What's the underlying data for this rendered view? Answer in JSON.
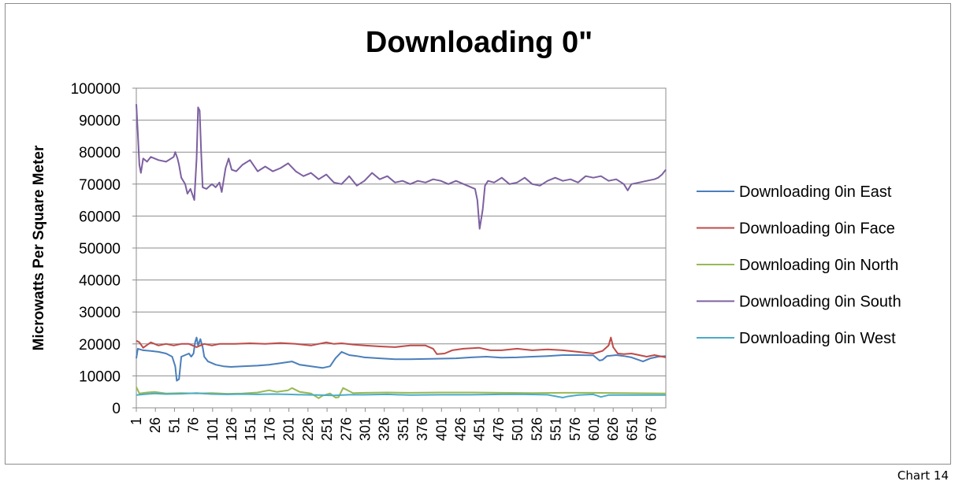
{
  "caption": "Chart 14",
  "chart_data": {
    "type": "line",
    "title": "Downloading 0\"",
    "xlabel": "",
    "ylabel": "Microwatts Per Square Meter",
    "ylim": [
      0,
      100000
    ],
    "yticks": [
      "0",
      "10000",
      "20000",
      "30000",
      "40000",
      "50000",
      "60000",
      "70000",
      "80000",
      "90000",
      "100000"
    ],
    "xlim": [
      1,
      695
    ],
    "xticks": [
      "1",
      "26",
      "51",
      "76",
      "101",
      "126",
      "151",
      "176",
      "201",
      "226",
      "251",
      "276",
      "301",
      "326",
      "351",
      "376",
      "401",
      "426",
      "451",
      "476",
      "501",
      "526",
      "551",
      "576",
      "601",
      "626",
      "651",
      "676"
    ],
    "grid": "horizontal",
    "legend_position": "right",
    "series": [
      {
        "name": "Downloading 0in East",
        "color": "#4a7ebb",
        "points": [
          [
            1,
            15500
          ],
          [
            3,
            18500
          ],
          [
            10,
            18000
          ],
          [
            20,
            17800
          ],
          [
            30,
            17500
          ],
          [
            40,
            17000
          ],
          [
            48,
            16000
          ],
          [
            52,
            13000
          ],
          [
            54,
            8500
          ],
          [
            57,
            9000
          ],
          [
            60,
            16000
          ],
          [
            65,
            16500
          ],
          [
            70,
            17000
          ],
          [
            73,
            16000
          ],
          [
            76,
            17000
          ],
          [
            78,
            20500
          ],
          [
            80,
            22000
          ],
          [
            82,
            19500
          ],
          [
            85,
            21500
          ],
          [
            88,
            19000
          ],
          [
            90,
            16000
          ],
          [
            95,
            14500
          ],
          [
            105,
            13500
          ],
          [
            115,
            13000
          ],
          [
            125,
            12800
          ],
          [
            140,
            13000
          ],
          [
            160,
            13200
          ],
          [
            175,
            13500
          ],
          [
            190,
            14000
          ],
          [
            205,
            14500
          ],
          [
            215,
            13500
          ],
          [
            230,
            13000
          ],
          [
            245,
            12500
          ],
          [
            255,
            13000
          ],
          [
            262,
            15500
          ],
          [
            270,
            17500
          ],
          [
            280,
            16500
          ],
          [
            290,
            16200
          ],
          [
            300,
            15800
          ],
          [
            320,
            15500
          ],
          [
            340,
            15200
          ],
          [
            360,
            15200
          ],
          [
            380,
            15300
          ],
          [
            400,
            15400
          ],
          [
            420,
            15500
          ],
          [
            440,
            15800
          ],
          [
            460,
            16000
          ],
          [
            480,
            15700
          ],
          [
            500,
            15800
          ],
          [
            520,
            16000
          ],
          [
            540,
            16200
          ],
          [
            560,
            16500
          ],
          [
            580,
            16500
          ],
          [
            600,
            16400
          ],
          [
            608,
            14800
          ],
          [
            612,
            15000
          ],
          [
            618,
            16200
          ],
          [
            630,
            16500
          ],
          [
            640,
            16200
          ],
          [
            650,
            15800
          ],
          [
            665,
            14500
          ],
          [
            675,
            15500
          ],
          [
            685,
            16000
          ],
          [
            695,
            16200
          ]
        ]
      },
      {
        "name": "Downloading 0in Face",
        "color": "#be4b48",
        "points": [
          [
            1,
            21000
          ],
          [
            5,
            20500
          ],
          [
            10,
            18800
          ],
          [
            20,
            20500
          ],
          [
            30,
            19500
          ],
          [
            40,
            20000
          ],
          [
            50,
            19500
          ],
          [
            60,
            20000
          ],
          [
            70,
            20000
          ],
          [
            80,
            19000
          ],
          [
            90,
            20000
          ],
          [
            100,
            19500
          ],
          [
            110,
            20000
          ],
          [
            130,
            20000
          ],
          [
            150,
            20200
          ],
          [
            170,
            20000
          ],
          [
            190,
            20300
          ],
          [
            210,
            20000
          ],
          [
            230,
            19500
          ],
          [
            250,
            20500
          ],
          [
            260,
            20000
          ],
          [
            270,
            20200
          ],
          [
            285,
            19800
          ],
          [
            300,
            19500
          ],
          [
            320,
            19200
          ],
          [
            340,
            19000
          ],
          [
            360,
            19500
          ],
          [
            380,
            19500
          ],
          [
            390,
            18500
          ],
          [
            395,
            16800
          ],
          [
            405,
            17000
          ],
          [
            415,
            18000
          ],
          [
            430,
            18500
          ],
          [
            450,
            18800
          ],
          [
            465,
            18000
          ],
          [
            480,
            18000
          ],
          [
            500,
            18500
          ],
          [
            520,
            18000
          ],
          [
            540,
            18300
          ],
          [
            560,
            18000
          ],
          [
            580,
            17500
          ],
          [
            600,
            17000
          ],
          [
            612,
            17800
          ],
          [
            620,
            19500
          ],
          [
            623,
            22000
          ],
          [
            626,
            19000
          ],
          [
            632,
            17000
          ],
          [
            640,
            16800
          ],
          [
            650,
            17000
          ],
          [
            660,
            16500
          ],
          [
            670,
            16000
          ],
          [
            680,
            16500
          ],
          [
            695,
            15800
          ]
        ]
      },
      {
        "name": "Downloading 0in North",
        "color": "#98b954",
        "points": [
          [
            1,
            6500
          ],
          [
            5,
            4500
          ],
          [
            15,
            4800
          ],
          [
            25,
            5000
          ],
          [
            40,
            4500
          ],
          [
            60,
            4600
          ],
          [
            80,
            4500
          ],
          [
            100,
            4600
          ],
          [
            120,
            4400
          ],
          [
            140,
            4500
          ],
          [
            160,
            4800
          ],
          [
            175,
            5500
          ],
          [
            185,
            5000
          ],
          [
            200,
            5500
          ],
          [
            205,
            6200
          ],
          [
            215,
            5000
          ],
          [
            230,
            4500
          ],
          [
            240,
            3000
          ],
          [
            245,
            3800
          ],
          [
            255,
            4500
          ],
          [
            262,
            3200
          ],
          [
            266,
            3300
          ],
          [
            272,
            6200
          ],
          [
            278,
            5500
          ],
          [
            285,
            4600
          ],
          [
            300,
            4700
          ],
          [
            330,
            4800
          ],
          [
            360,
            4700
          ],
          [
            400,
            4800
          ],
          [
            440,
            4800
          ],
          [
            480,
            4700
          ],
          [
            520,
            4600
          ],
          [
            560,
            4700
          ],
          [
            600,
            4700
          ],
          [
            640,
            4600
          ],
          [
            695,
            4500
          ]
        ]
      },
      {
        "name": "Downloading 0in South",
        "color": "#7d60a0",
        "points": [
          [
            1,
            95000
          ],
          [
            3,
            86000
          ],
          [
            5,
            76000
          ],
          [
            7,
            73500
          ],
          [
            10,
            78000
          ],
          [
            15,
            77000
          ],
          [
            20,
            78500
          ],
          [
            30,
            77500
          ],
          [
            40,
            77000
          ],
          [
            50,
            78500
          ],
          [
            52,
            80000
          ],
          [
            55,
            78000
          ],
          [
            57,
            76000
          ],
          [
            60,
            72000
          ],
          [
            65,
            70000
          ],
          [
            68,
            67000
          ],
          [
            72,
            68500
          ],
          [
            77,
            65000
          ],
          [
            80,
            78000
          ],
          [
            82,
            94000
          ],
          [
            84,
            93000
          ],
          [
            86,
            80000
          ],
          [
            88,
            69000
          ],
          [
            93,
            68500
          ],
          [
            100,
            70000
          ],
          [
            105,
            69000
          ],
          [
            110,
            70500
          ],
          [
            113,
            67500
          ],
          [
            118,
            75000
          ],
          [
            122,
            78000
          ],
          [
            126,
            74500
          ],
          [
            132,
            74000
          ],
          [
            140,
            76000
          ],
          [
            150,
            77500
          ],
          [
            160,
            74000
          ],
          [
            170,
            75500
          ],
          [
            180,
            74000
          ],
          [
            190,
            75000
          ],
          [
            200,
            76500
          ],
          [
            210,
            74000
          ],
          [
            220,
            72500
          ],
          [
            230,
            73500
          ],
          [
            240,
            71500
          ],
          [
            250,
            73000
          ],
          [
            260,
            70500
          ],
          [
            270,
            70000
          ],
          [
            280,
            72500
          ],
          [
            290,
            69500
          ],
          [
            300,
            71000
          ],
          [
            310,
            73500
          ],
          [
            320,
            71500
          ],
          [
            330,
            72500
          ],
          [
            340,
            70500
          ],
          [
            350,
            71000
          ],
          [
            360,
            70000
          ],
          [
            370,
            71000
          ],
          [
            380,
            70500
          ],
          [
            390,
            71500
          ],
          [
            400,
            71000
          ],
          [
            410,
            70000
          ],
          [
            420,
            71000
          ],
          [
            430,
            70000
          ],
          [
            440,
            69000
          ],
          [
            445,
            68500
          ],
          [
            448,
            65000
          ],
          [
            451,
            56000
          ],
          [
            455,
            62000
          ],
          [
            458,
            69500
          ],
          [
            462,
            71000
          ],
          [
            470,
            70500
          ],
          [
            480,
            72000
          ],
          [
            490,
            70000
          ],
          [
            500,
            70500
          ],
          [
            510,
            72000
          ],
          [
            520,
            70000
          ],
          [
            530,
            69500
          ],
          [
            540,
            71000
          ],
          [
            550,
            72000
          ],
          [
            560,
            71000
          ],
          [
            570,
            71500
          ],
          [
            580,
            70500
          ],
          [
            590,
            72500
          ],
          [
            600,
            72000
          ],
          [
            610,
            72500
          ],
          [
            620,
            71000
          ],
          [
            630,
            71500
          ],
          [
            640,
            70000
          ],
          [
            645,
            68000
          ],
          [
            650,
            70000
          ],
          [
            660,
            70500
          ],
          [
            670,
            71000
          ],
          [
            680,
            71500
          ],
          [
            685,
            72000
          ],
          [
            690,
            73000
          ],
          [
            695,
            74500
          ]
        ]
      },
      {
        "name": "Downloading 0in West",
        "color": "#4bacc6",
        "points": [
          [
            1,
            4000
          ],
          [
            10,
            4200
          ],
          [
            25,
            4500
          ],
          [
            40,
            4300
          ],
          [
            60,
            4400
          ],
          [
            80,
            4600
          ],
          [
            100,
            4300
          ],
          [
            120,
            4200
          ],
          [
            140,
            4300
          ],
          [
            160,
            4200
          ],
          [
            180,
            4300
          ],
          [
            200,
            4200
          ],
          [
            220,
            4100
          ],
          [
            240,
            4000
          ],
          [
            260,
            3900
          ],
          [
            280,
            4100
          ],
          [
            300,
            4100
          ],
          [
            330,
            4200
          ],
          [
            360,
            4000
          ],
          [
            400,
            4100
          ],
          [
            440,
            4100
          ],
          [
            480,
            4200
          ],
          [
            510,
            4200
          ],
          [
            540,
            4100
          ],
          [
            560,
            3200
          ],
          [
            565,
            3500
          ],
          [
            580,
            4000
          ],
          [
            600,
            4200
          ],
          [
            610,
            3400
          ],
          [
            620,
            4000
          ],
          [
            640,
            4000
          ],
          [
            660,
            4000
          ],
          [
            695,
            4000
          ]
        ]
      }
    ]
  }
}
